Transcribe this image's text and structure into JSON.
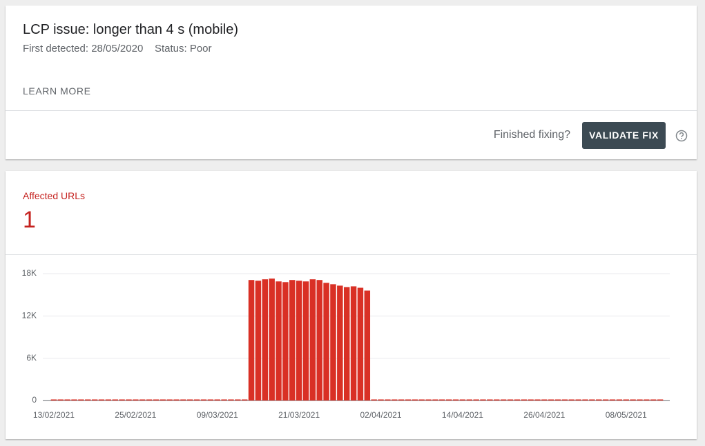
{
  "header": {
    "title": "LCP issue: longer than 4 s (mobile)",
    "first_detected": "First detected: 28/05/2020",
    "status": "Status: Poor",
    "learn_more": "LEARN MORE",
    "finished_fixing": "Finished fixing?",
    "validate_button": "VALIDATE FIX"
  },
  "summary": {
    "label": "Affected URLs",
    "value": "1"
  },
  "chart_data": {
    "type": "bar",
    "color": "#d93025",
    "categories": [
      "13/02/2021",
      null,
      null,
      null,
      null,
      null,
      null,
      null,
      null,
      null,
      null,
      null,
      "25/02/2021",
      null,
      null,
      null,
      null,
      null,
      null,
      null,
      null,
      null,
      null,
      null,
      "09/03/2021",
      null,
      null,
      null,
      null,
      null,
      null,
      null,
      null,
      null,
      null,
      null,
      "21/03/2021",
      null,
      null,
      null,
      null,
      null,
      null,
      null,
      null,
      null,
      null,
      null,
      "02/04/2021",
      null,
      null,
      null,
      null,
      null,
      null,
      null,
      null,
      null,
      null,
      null,
      "14/04/2021",
      null,
      null,
      null,
      null,
      null,
      null,
      null,
      null,
      null,
      null,
      null,
      "26/04/2021",
      null,
      null,
      null,
      null,
      null,
      null,
      null,
      null,
      null,
      null,
      null,
      "08/05/2021",
      null,
      null,
      null,
      null,
      null
    ],
    "values": [
      150,
      150,
      150,
      150,
      150,
      150,
      150,
      150,
      150,
      150,
      150,
      150,
      150,
      150,
      150,
      150,
      150,
      150,
      150,
      150,
      150,
      150,
      150,
      150,
      150,
      150,
      150,
      150,
      150,
      17100,
      17000,
      17200,
      17300,
      16900,
      16800,
      17100,
      17000,
      16900,
      17200,
      17100,
      16700,
      16500,
      16300,
      16100,
      16200,
      16000,
      15600,
      150,
      150,
      150,
      150,
      150,
      150,
      150,
      150,
      150,
      150,
      150,
      150,
      150,
      150,
      150,
      150,
      150,
      150,
      150,
      150,
      150,
      150,
      150,
      150,
      150,
      150,
      150,
      150,
      150,
      150,
      150,
      150,
      150,
      150,
      150,
      150,
      150,
      150,
      150,
      150,
      150,
      150,
      150
    ],
    "ylim": [
      0,
      18000
    ],
    "yticks": [
      0,
      {
        "value": 6000,
        "label": "6K"
      },
      {
        "value": 12000,
        "label": "12K"
      },
      {
        "value": 18000,
        "label": "18K"
      }
    ],
    "grid": true
  }
}
